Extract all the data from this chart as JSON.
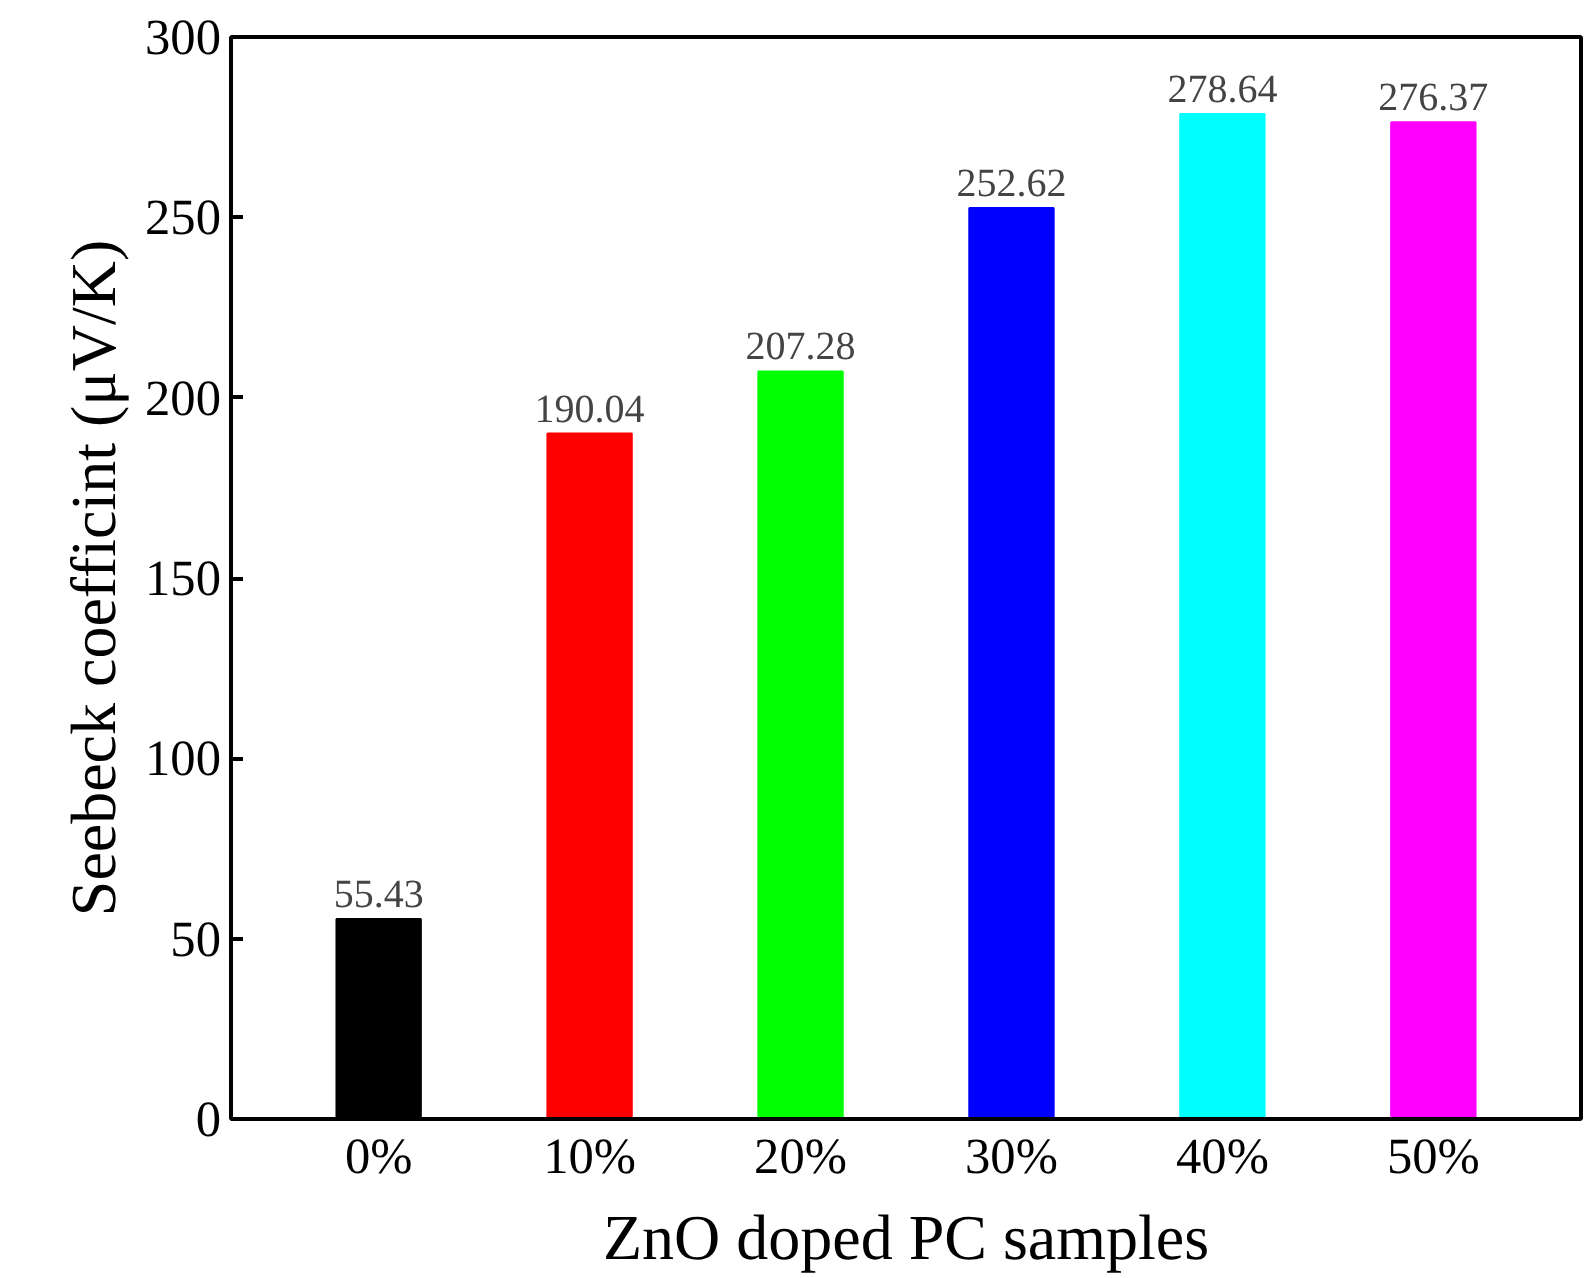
{
  "chart_data": {
    "type": "bar",
    "xlabel": "ZnO doped PC samples",
    "ylabel": "Seebeck coefficint (μV/K)",
    "categories": [
      "0%",
      "10%",
      "20%",
      "30%",
      "40%",
      "50%"
    ],
    "values": [
      55.43,
      190.04,
      207.28,
      252.62,
      278.64,
      276.37
    ],
    "colors": [
      "#000000",
      "#ff0000",
      "#00ff00",
      "#0000ff",
      "#00ffff",
      "#ff00ff"
    ],
    "ylim": [
      0,
      300
    ],
    "yticks": [
      0,
      50,
      100,
      150,
      200,
      250,
      300
    ],
    "data_labels": true,
    "grid": false
  }
}
